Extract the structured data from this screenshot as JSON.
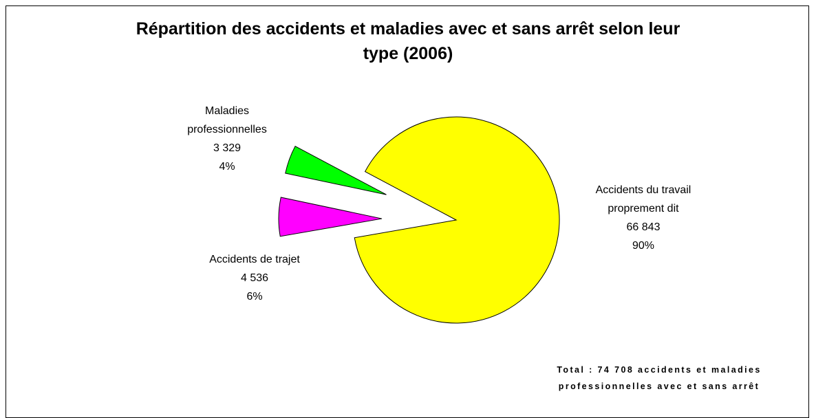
{
  "chart_data": {
    "type": "pie",
    "title": "Répartition des accidents et maladies avec et sans arrêt selon leur type (2006)",
    "categories": [
      "Accidents du travail proprement dit",
      "Accidents de trajet",
      "Maladies professionnelles"
    ],
    "values": [
      66843,
      4536,
      3329
    ],
    "value_labels": [
      "66 843",
      "4 536",
      "3 329"
    ],
    "percent_labels": [
      "90%",
      "6%",
      "4%"
    ],
    "colors": [
      "#ffff00",
      "#ff00ff",
      "#00ff00"
    ],
    "exploded": [
      false,
      true,
      true
    ],
    "annotation": "Total : 74 708 accidents et maladies professionnelles avec et sans arrêt"
  }
}
